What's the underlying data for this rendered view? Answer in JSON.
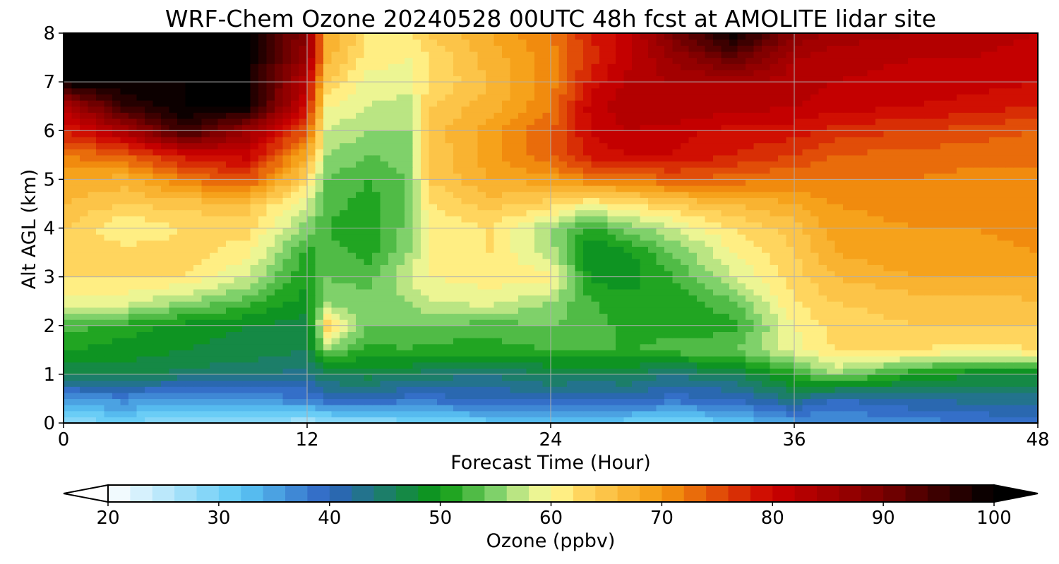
{
  "chart_data": {
    "type": "heatmap",
    "title": "WRF-Chem Ozone  20240528 00UTC 48h fcst at AMOLITE lidar site",
    "xlabel": "Forecast Time (Hour)",
    "ylabel": "Alt AGL (km)",
    "xlim": [
      0,
      48
    ],
    "ylim": [
      0,
      8
    ],
    "xticks": [
      0,
      12,
      24,
      36,
      48
    ],
    "yticks": [
      0,
      1,
      2,
      3,
      4,
      5,
      6,
      7,
      8
    ],
    "grid": true,
    "x": [
      0,
      3,
      6,
      9,
      12,
      13,
      15,
      17,
      18,
      21,
      24,
      26,
      28,
      30,
      33,
      36,
      38,
      42,
      45,
      48
    ],
    "y": [
      0,
      0.5,
      1,
      1.5,
      2,
      2.5,
      3,
      3.5,
      4,
      4.5,
      5,
      5.5,
      6,
      6.5,
      7,
      7.5,
      8
    ],
    "z": [
      [
        28,
        30,
        27,
        28,
        26,
        27,
        28,
        29,
        30,
        31,
        33,
        33,
        30,
        29,
        32,
        35,
        36,
        37,
        38,
        39
      ],
      [
        36,
        37,
        35,
        36,
        38,
        40,
        40,
        39,
        39,
        40,
        41,
        40,
        41,
        39,
        40,
        44,
        40,
        42,
        43,
        43
      ],
      [
        46,
        47,
        45,
        45,
        43,
        46,
        47,
        46,
        45,
        44,
        46,
        46,
        46,
        44,
        46,
        51,
        56,
        50,
        48,
        48
      ],
      [
        50,
        49,
        48,
        47,
        46,
        55,
        51,
        52,
        51,
        51,
        52,
        52,
        52,
        53,
        54,
        59,
        62,
        62,
        61,
        62
      ],
      [
        53,
        51,
        49,
        48,
        47,
        63,
        54,
        54,
        54,
        53,
        54,
        53,
        51,
        51,
        51,
        60,
        63,
        64,
        64,
        64
      ],
      [
        59,
        59,
        56,
        53,
        49,
        55,
        55,
        56,
        58,
        59,
        56,
        52,
        51,
        50,
        54,
        62,
        64,
        65,
        65,
        66
      ],
      [
        62,
        62,
        62,
        58,
        50,
        54,
        53,
        58,
        60,
        61,
        61,
        49,
        49,
        52,
        58,
        63,
        66,
        68,
        68,
        68
      ],
      [
        63,
        63,
        63,
        61,
        51,
        53,
        51,
        56,
        60,
        62,
        57,
        48,
        50,
        54,
        60,
        64,
        68,
        70,
        69,
        70
      ],
      [
        64,
        60,
        62,
        63,
        55,
        52,
        50,
        55,
        60,
        62,
        56,
        51,
        55,
        58,
        62,
        65,
        69,
        70,
        70,
        71
      ],
      [
        66,
        64,
        65,
        65,
        58,
        53,
        51,
        54,
        62,
        65,
        63,
        60,
        62,
        64,
        66,
        68,
        70,
        71,
        71,
        72
      ],
      [
        68,
        67,
        72,
        75,
        63,
        54,
        52,
        54,
        64,
        68,
        69,
        72,
        72,
        74,
        73,
        72,
        72,
        72,
        71,
        72
      ],
      [
        72,
        74,
        79,
        81,
        68,
        56,
        54,
        55,
        64,
        69,
        74,
        79,
        80,
        80,
        78,
        76,
        74,
        73,
        73,
        72
      ],
      [
        78,
        84,
        96,
        86,
        74,
        58,
        56,
        56,
        65,
        69,
        74,
        80,
        82,
        81,
        79,
        79,
        77,
        76,
        75,
        74
      ],
      [
        83,
        96,
        100,
        100,
        79,
        60,
        58,
        57,
        64,
        67,
        72,
        81,
        84,
        84,
        83,
        82,
        81,
        80,
        79,
        78
      ],
      [
        100,
        100,
        100,
        100,
        82,
        64,
        59,
        59,
        62,
        66,
        71,
        79,
        83,
        84,
        84,
        83,
        82,
        81,
        81,
        80
      ],
      [
        100,
        100,
        100,
        100,
        86,
        67,
        61,
        60,
        62,
        67,
        71,
        77,
        82,
        86,
        92,
        84,
        83,
        82,
        82,
        81
      ],
      [
        100,
        100,
        100,
        100,
        88,
        68,
        62,
        61,
        64,
        68,
        72,
        78,
        82,
        90,
        100,
        88,
        85,
        84,
        83,
        82
      ]
    ],
    "colorbar": {
      "label": "Ozone  (ppbv)",
      "min": 20,
      "max": 100,
      "ticks": [
        20,
        30,
        40,
        50,
        60,
        70,
        80,
        90,
        100
      ],
      "extend": "both",
      "extend_low_color": "#ffffff",
      "extend_high_color": "#000000",
      "colors": [
        "#ffffff",
        "#5cc8f5",
        "#2e62c2",
        "#0a9a10",
        "#7fd16a",
        "#d8ef90",
        "#fffb95",
        "#ffd55e",
        "#f59a10",
        "#cc0000",
        "#7a0000",
        "#000000"
      ],
      "color_stops": [
        20,
        32,
        40,
        50,
        55,
        58,
        60,
        63,
        70,
        80,
        90,
        100
      ]
    }
  }
}
